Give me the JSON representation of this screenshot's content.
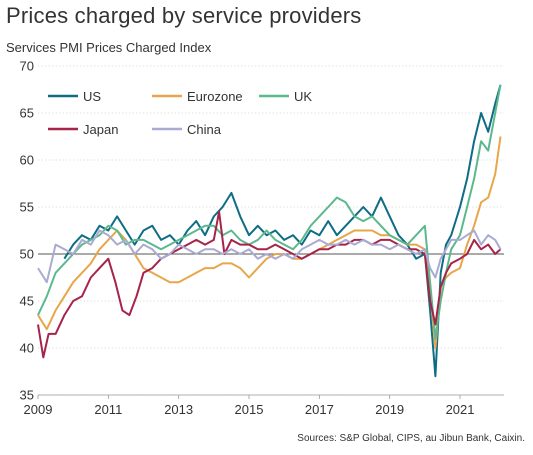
{
  "chart_data": {
    "type": "line",
    "title": "Prices charged by service providers",
    "subtitle": "Services PMI Prices Charged Index",
    "source": "Sources: S&P Global, CIPS, au Jibun Bank, Caixin.",
    "xlim": [
      2009,
      2022.25
    ],
    "ylim": [
      35,
      70
    ],
    "x_ticks": [
      2009,
      2011,
      2013,
      2015,
      2017,
      2019,
      2021
    ],
    "y_ticks": [
      35,
      40,
      45,
      50,
      55,
      60,
      65,
      70
    ],
    "reference_line": 50,
    "grid": "horizontal",
    "legend": "top-left",
    "series": [
      {
        "name": "US",
        "color": "#0e6d84",
        "x": [
          2009.75,
          2010.0,
          2010.25,
          2010.5,
          2010.75,
          2011.0,
          2011.25,
          2011.5,
          2011.75,
          2012.0,
          2012.25,
          2012.5,
          2012.75,
          2013.0,
          2013.25,
          2013.5,
          2013.75,
          2014.0,
          2014.25,
          2014.5,
          2014.75,
          2015.0,
          2015.25,
          2015.5,
          2015.75,
          2016.0,
          2016.25,
          2016.5,
          2016.75,
          2017.0,
          2017.25,
          2017.5,
          2017.75,
          2018.0,
          2018.25,
          2018.5,
          2018.75,
          2019.0,
          2019.25,
          2019.5,
          2019.75,
          2020.0,
          2020.15,
          2020.3,
          2020.45,
          2020.6,
          2020.75,
          2021.0,
          2021.2,
          2021.4,
          2021.6,
          2021.8,
          2022.0,
          2022.15
        ],
        "values": [
          49.5,
          51.0,
          52.0,
          51.5,
          53.0,
          52.5,
          54.0,
          52.5,
          51.0,
          52.5,
          53.0,
          51.5,
          52.0,
          51.0,
          52.5,
          53.5,
          52.0,
          54.0,
          55.0,
          56.5,
          54.0,
          52.0,
          53.0,
          52.0,
          52.5,
          51.5,
          52.0,
          51.0,
          52.5,
          52.0,
          53.5,
          52.0,
          53.0,
          54.0,
          55.0,
          54.0,
          56.0,
          54.0,
          52.0,
          51.0,
          49.5,
          50.0,
          44.0,
          37.0,
          48.0,
          51.0,
          52.0,
          55.0,
          58.0,
          62.0,
          65.0,
          63.0,
          66.0,
          68.0
        ]
      },
      {
        "name": "Eurozone",
        "color": "#e8a64a",
        "x": [
          2009.0,
          2009.25,
          2009.5,
          2009.75,
          2010.0,
          2010.25,
          2010.5,
          2010.75,
          2011.0,
          2011.25,
          2011.5,
          2011.75,
          2012.0,
          2012.25,
          2012.5,
          2012.75,
          2013.0,
          2013.25,
          2013.5,
          2013.75,
          2014.0,
          2014.25,
          2014.5,
          2014.75,
          2015.0,
          2015.25,
          2015.5,
          2015.75,
          2016.0,
          2016.25,
          2016.5,
          2016.75,
          2017.0,
          2017.25,
          2017.5,
          2017.75,
          2018.0,
          2018.25,
          2018.5,
          2018.75,
          2019.0,
          2019.25,
          2019.5,
          2019.75,
          2020.0,
          2020.15,
          2020.3,
          2020.45,
          2020.6,
          2020.75,
          2021.0,
          2021.2,
          2021.4,
          2021.6,
          2021.8,
          2022.0,
          2022.15
        ],
        "values": [
          43.5,
          42.0,
          44.0,
          45.5,
          47.0,
          48.0,
          49.0,
          50.5,
          51.5,
          52.5,
          51.5,
          50.0,
          48.5,
          48.0,
          47.5,
          47.0,
          47.0,
          47.5,
          48.0,
          48.5,
          48.5,
          49.0,
          49.0,
          48.5,
          47.5,
          48.5,
          49.5,
          50.0,
          50.0,
          49.5,
          49.5,
          50.0,
          50.5,
          51.0,
          51.5,
          52.0,
          52.5,
          52.5,
          52.5,
          52.0,
          52.0,
          51.5,
          51.0,
          51.0,
          50.5,
          46.0,
          40.0,
          46.5,
          47.5,
          48.0,
          48.5,
          51.0,
          53.0,
          55.5,
          56.0,
          58.5,
          62.5
        ]
      },
      {
        "name": "UK",
        "color": "#5cb88d",
        "x": [
          2009.0,
          2009.25,
          2009.5,
          2009.75,
          2010.0,
          2010.25,
          2010.5,
          2010.75,
          2011.0,
          2011.25,
          2011.5,
          2011.75,
          2012.0,
          2012.25,
          2012.5,
          2012.75,
          2013.0,
          2013.25,
          2013.5,
          2013.75,
          2014.0,
          2014.25,
          2014.5,
          2014.75,
          2015.0,
          2015.25,
          2015.5,
          2015.75,
          2016.0,
          2016.25,
          2016.5,
          2016.75,
          2017.0,
          2017.25,
          2017.5,
          2017.75,
          2018.0,
          2018.25,
          2018.5,
          2018.75,
          2019.0,
          2019.25,
          2019.5,
          2019.75,
          2020.0,
          2020.15,
          2020.3,
          2020.45,
          2020.6,
          2020.75,
          2021.0,
          2021.2,
          2021.4,
          2021.6,
          2021.8,
          2022.0,
          2022.15
        ],
        "values": [
          43.5,
          45.5,
          48.0,
          49.0,
          50.0,
          51.0,
          51.5,
          52.0,
          53.0,
          52.5,
          51.0,
          51.5,
          51.5,
          51.0,
          50.5,
          51.0,
          51.5,
          52.0,
          52.5,
          53.0,
          53.0,
          52.0,
          52.5,
          51.5,
          51.0,
          51.5,
          52.5,
          51.5,
          51.0,
          50.5,
          51.5,
          53.0,
          54.0,
          55.0,
          56.0,
          55.5,
          54.0,
          53.5,
          54.0,
          53.0,
          52.0,
          51.5,
          51.0,
          52.0,
          53.0,
          47.0,
          41.0,
          45.0,
          48.0,
          50.5,
          52.0,
          55.0,
          58.0,
          62.0,
          61.0,
          65.0,
          68.0
        ]
      },
      {
        "name": "Japan",
        "color": "#a6234a",
        "x": [
          2009.0,
          2009.15,
          2009.3,
          2009.5,
          2009.75,
          2010.0,
          2010.25,
          2010.5,
          2010.75,
          2011.0,
          2011.2,
          2011.4,
          2011.6,
          2011.8,
          2012.0,
          2012.25,
          2012.5,
          2012.75,
          2013.0,
          2013.25,
          2013.5,
          2013.75,
          2014.0,
          2014.15,
          2014.3,
          2014.5,
          2014.75,
          2015.0,
          2015.25,
          2015.5,
          2015.75,
          2016.0,
          2016.25,
          2016.5,
          2016.75,
          2017.0,
          2017.25,
          2017.5,
          2017.75,
          2018.0,
          2018.25,
          2018.5,
          2018.75,
          2019.0,
          2019.25,
          2019.5,
          2019.75,
          2020.0,
          2020.15,
          2020.3,
          2020.45,
          2020.6,
          2020.75,
          2021.0,
          2021.2,
          2021.4,
          2021.6,
          2021.8,
          2022.0,
          2022.15
        ],
        "values": [
          42.5,
          39.0,
          41.5,
          41.5,
          43.5,
          45.0,
          45.5,
          47.5,
          48.5,
          49.5,
          47.0,
          44.0,
          43.5,
          45.5,
          48.0,
          48.5,
          49.5,
          50.0,
          50.5,
          51.0,
          51.5,
          51.0,
          51.5,
          54.5,
          50.0,
          51.5,
          51.0,
          51.0,
          50.5,
          50.5,
          51.0,
          50.5,
          50.0,
          49.5,
          50.0,
          50.5,
          50.5,
          51.0,
          51.0,
          51.5,
          51.5,
          51.0,
          51.5,
          51.5,
          51.0,
          50.5,
          50.5,
          50.0,
          45.0,
          42.5,
          46.5,
          48.0,
          49.0,
          49.5,
          50.0,
          51.5,
          50.5,
          51.0,
          50.0,
          50.5
        ]
      },
      {
        "name": "China",
        "color": "#a9abd2",
        "x": [
          2009.0,
          2009.25,
          2009.5,
          2009.75,
          2010.0,
          2010.25,
          2010.5,
          2010.75,
          2011.0,
          2011.25,
          2011.5,
          2011.75,
          2012.0,
          2012.25,
          2012.5,
          2012.75,
          2013.0,
          2013.25,
          2013.5,
          2013.75,
          2014.0,
          2014.25,
          2014.5,
          2014.75,
          2015.0,
          2015.25,
          2015.5,
          2015.75,
          2016.0,
          2016.25,
          2016.5,
          2016.75,
          2017.0,
          2017.25,
          2017.5,
          2017.75,
          2018.0,
          2018.25,
          2018.5,
          2018.75,
          2019.0,
          2019.25,
          2019.5,
          2019.75,
          2020.0,
          2020.15,
          2020.3,
          2020.45,
          2020.6,
          2020.75,
          2021.0,
          2021.2,
          2021.4,
          2021.6,
          2021.8,
          2022.0,
          2022.15
        ],
        "values": [
          48.5,
          47.0,
          51.0,
          50.5,
          50.0,
          51.5,
          51.0,
          52.5,
          52.0,
          51.0,
          51.5,
          50.0,
          51.0,
          50.5,
          49.5,
          50.0,
          51.0,
          50.5,
          50.0,
          50.5,
          50.5,
          50.0,
          50.5,
          50.0,
          50.5,
          49.5,
          50.0,
          49.5,
          50.0,
          49.5,
          50.5,
          51.0,
          51.5,
          51.0,
          51.0,
          51.5,
          51.0,
          51.5,
          51.0,
          51.0,
          50.5,
          51.0,
          50.5,
          50.0,
          50.5,
          48.5,
          47.5,
          49.5,
          50.5,
          51.5,
          51.5,
          52.0,
          52.5,
          51.0,
          52.0,
          51.5,
          50.5
        ]
      }
    ]
  }
}
